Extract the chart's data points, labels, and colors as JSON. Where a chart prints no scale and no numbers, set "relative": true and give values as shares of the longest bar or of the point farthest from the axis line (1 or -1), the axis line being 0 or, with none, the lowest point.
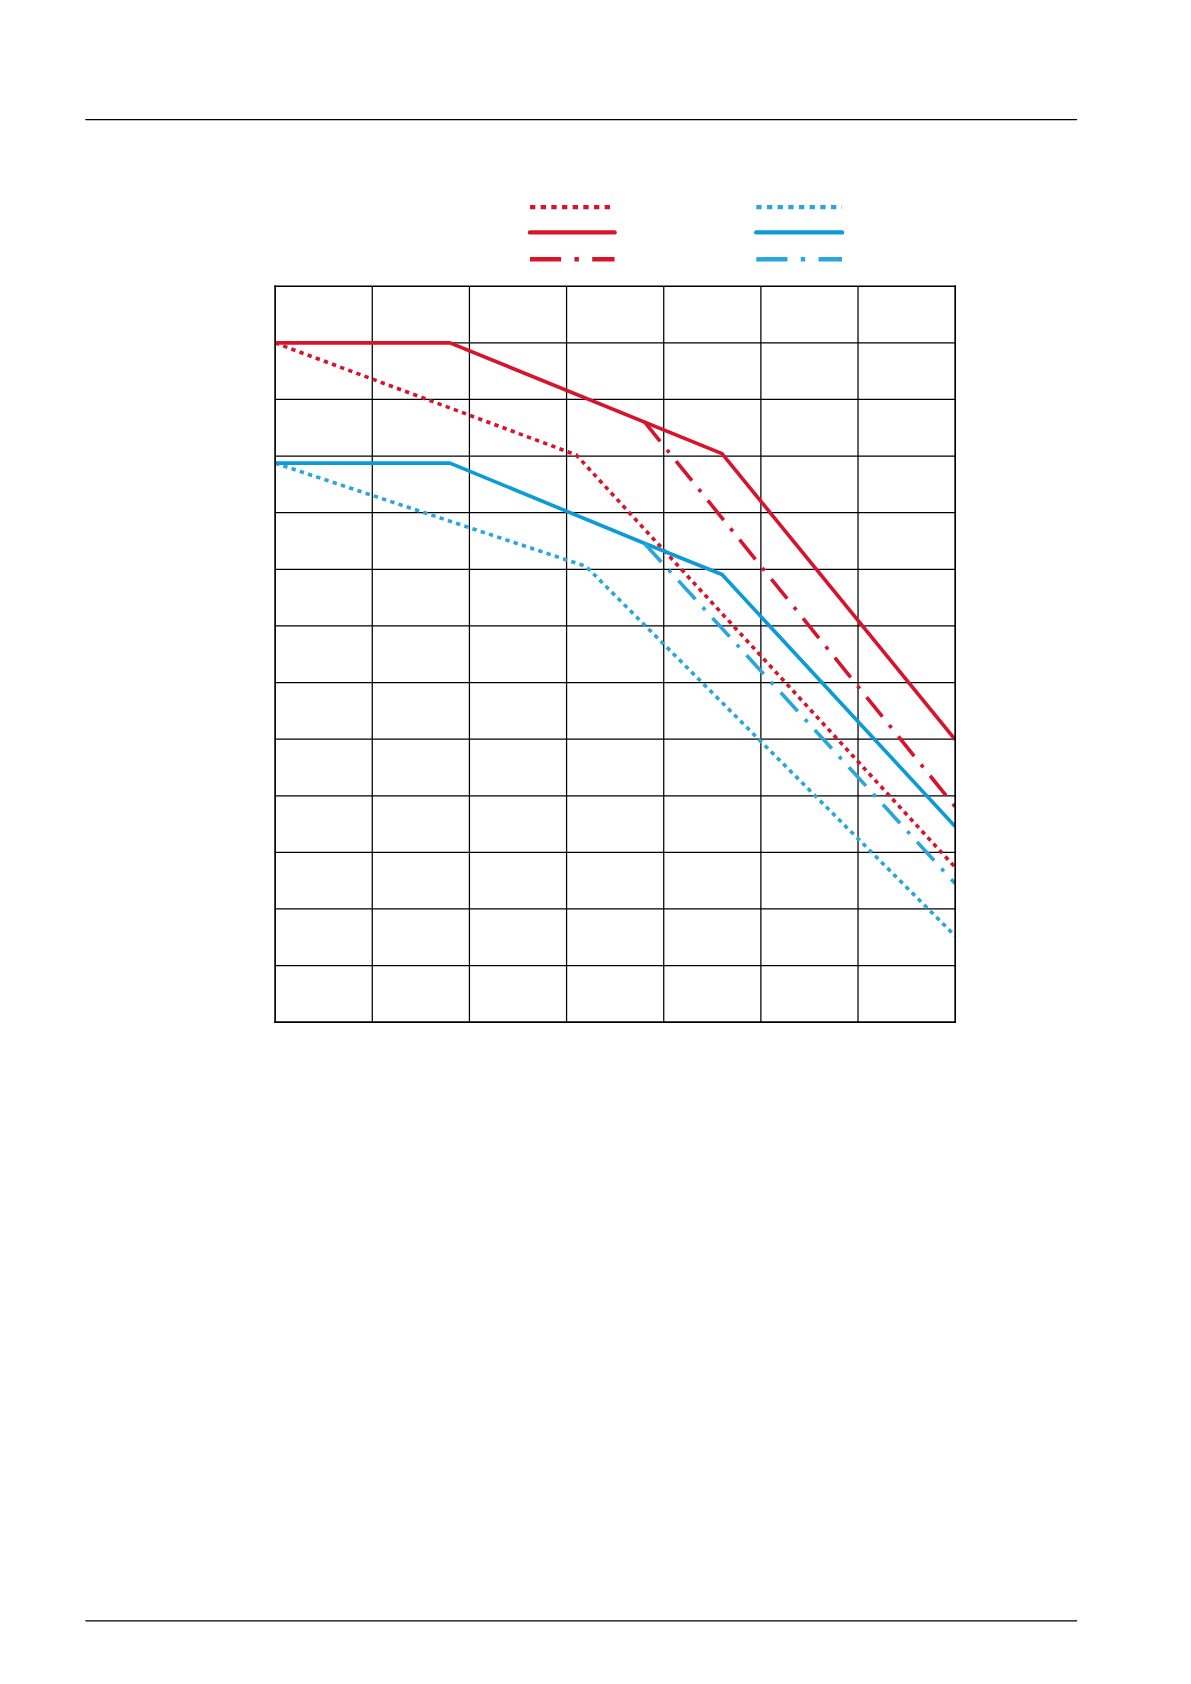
{
  "chart_data": {
    "type": "line",
    "relative": true,
    "categories": [
      null,
      null,
      null,
      null,
      null,
      null,
      null,
      null,
      null,
      null,
      null,
      null,
      null,
      null,
      null,
      null,
      null,
      null,
      null,
      null,
      null,
      null,
      null,
      null,
      null,
      null,
      null,
      null,
      null,
      null,
      null,
      null,
      null,
      null,
      null,
      null,
      null,
      null,
      null,
      null,
      null,
      null,
      null,
      null,
      null,
      null,
      null,
      null,
      null,
      null,
      null,
      null,
      null,
      null,
      null,
      null,
      null,
      null,
      null,
      null,
      null,
      null,
      null,
      null,
      null,
      null,
      null,
      null,
      null,
      null,
      null
    ],
    "grid": true,
    "marker": "none",
    "series": [
      {
        "color": "#d7142c",
        "line_style": "dotted",
        "values": [
          1.0,
          null,
          null,
          null,
          null,
          null,
          null,
          null,
          null,
          null,
          null,
          null,
          null,
          null,
          null,
          null,
          null,
          null,
          null,
          null,
          null,
          null,
          null,
          null,
          null,
          null,
          null,
          null,
          null,
          null,
          null,
          0.835,
          null,
          null,
          null,
          null,
          null,
          null,
          null,
          null,
          null,
          null,
          null,
          null,
          null,
          null,
          null,
          null,
          null,
          null,
          null,
          null,
          null,
          null,
          null,
          null,
          null,
          null,
          null,
          null,
          null,
          null,
          null,
          null,
          null,
          null,
          null,
          null,
          null,
          null,
          0.228
        ]
      },
      {
        "color": "#d7142c",
        "line_style": "solid",
        "values": [
          1.0,
          null,
          null,
          null,
          null,
          null,
          null,
          null,
          null,
          null,
          null,
          null,
          null,
          null,
          null,
          null,
          null,
          null,
          1.0,
          null,
          null,
          null,
          null,
          null,
          null,
          null,
          null,
          null,
          null,
          null,
          null,
          null,
          null,
          null,
          null,
          null,
          null,
          null,
          null,
          null,
          null,
          null,
          null,
          null,
          null,
          null,
          0.837,
          null,
          null,
          null,
          null,
          null,
          null,
          null,
          null,
          null,
          null,
          null,
          null,
          null,
          null,
          null,
          null,
          null,
          null,
          null,
          null,
          null,
          null,
          null,
          0.416
        ]
      },
      {
        "color": "#d7142c",
        "line_style": "dashdot",
        "values": [
          null,
          null,
          null,
          null,
          null,
          null,
          null,
          null,
          null,
          null,
          null,
          null,
          null,
          null,
          null,
          null,
          null,
          null,
          null,
          null,
          null,
          null,
          null,
          null,
          null,
          null,
          null,
          null,
          null,
          null,
          null,
          null,
          null,
          null,
          null,
          null,
          null,
          null,
          0.884,
          null,
          null,
          null,
          null,
          null,
          null,
          null,
          null,
          null,
          null,
          null,
          null,
          null,
          null,
          null,
          null,
          null,
          null,
          null,
          null,
          null,
          null,
          null,
          null,
          null,
          null,
          null,
          null,
          null,
          null,
          null,
          0.317
        ]
      },
      {
        "color": "#2aa6dc",
        "line_style": "dotted",
        "values": [
          0.823,
          null,
          null,
          null,
          null,
          null,
          null,
          null,
          null,
          null,
          null,
          null,
          null,
          null,
          null,
          null,
          null,
          null,
          null,
          null,
          null,
          null,
          null,
          null,
          null,
          null,
          null,
          null,
          null,
          null,
          null,
          null,
          0.671,
          null,
          null,
          null,
          null,
          null,
          null,
          null,
          null,
          null,
          null,
          null,
          null,
          null,
          null,
          null,
          null,
          null,
          null,
          null,
          null,
          null,
          null,
          null,
          null,
          null,
          null,
          null,
          null,
          null,
          null,
          null,
          null,
          null,
          null,
          null,
          null,
          null,
          0.127
        ]
      },
      {
        "color": "#0a9bd8",
        "line_style": "solid",
        "values": [
          0.823,
          null,
          null,
          null,
          null,
          null,
          null,
          null,
          null,
          null,
          null,
          null,
          null,
          null,
          null,
          null,
          null,
          null,
          0.823,
          null,
          null,
          null,
          null,
          null,
          null,
          null,
          null,
          null,
          null,
          null,
          null,
          null,
          null,
          null,
          null,
          null,
          null,
          null,
          0.705,
          null,
          null,
          null,
          null,
          null,
          null,
          null,
          0.659,
          null,
          null,
          null,
          null,
          null,
          null,
          null,
          null,
          null,
          null,
          null,
          null,
          null,
          null,
          null,
          null,
          null,
          null,
          null,
          null,
          null,
          null,
          null,
          0.288
        ]
      },
      {
        "color": "#2aa6dc",
        "line_style": "dashdot",
        "values": [
          null,
          null,
          null,
          null,
          null,
          null,
          null,
          null,
          null,
          null,
          null,
          null,
          null,
          null,
          null,
          null,
          null,
          null,
          null,
          null,
          null,
          null,
          null,
          null,
          null,
          null,
          null,
          null,
          null,
          null,
          null,
          null,
          null,
          null,
          null,
          null,
          null,
          null,
          0.705,
          null,
          null,
          null,
          null,
          null,
          null,
          null,
          null,
          null,
          null,
          null,
          null,
          null,
          null,
          null,
          null,
          null,
          null,
          null,
          null,
          null,
          null,
          null,
          null,
          null,
          null,
          null,
          null,
          null,
          null,
          null,
          0.204
        ]
      }
    ]
  }
}
